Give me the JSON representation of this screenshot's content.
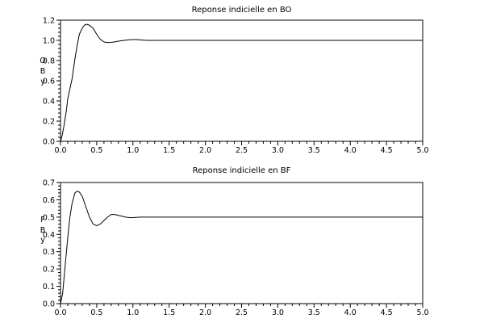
{
  "chart_data": [
    {
      "type": "line",
      "title": "Reponse indicielle en BO",
      "ylabel_chars": [
        "O",
        "B",
        "y"
      ],
      "xlim": [
        0,
        5
      ],
      "ylim": [
        0,
        1.2
      ],
      "x_ticks": [
        0.0,
        0.5,
        1.0,
        1.5,
        2.0,
        2.5,
        3.0,
        3.5,
        4.0,
        4.5,
        5.0
      ],
      "x_tick_labels": [
        "0.0",
        "0.5",
        "1.0",
        "1.5",
        "2.0",
        "2.5",
        "3.0",
        "3.5",
        "4.0",
        "4.5",
        "5.0"
      ],
      "y_ticks": [
        0.0,
        0.2,
        0.4,
        0.6,
        0.8,
        1.0,
        1.2
      ],
      "y_tick_labels": [
        "0.0",
        "0.2",
        "0.4",
        "0.6",
        "0.8",
        "1.0",
        "1.2"
      ],
      "grid": false,
      "series": [
        {
          "x": [
            0,
            0.02,
            0.05,
            0.08,
            0.1,
            0.13,
            0.16,
            0.2,
            0.23,
            0.26,
            0.3,
            0.33,
            0.36,
            0.4,
            0.45,
            0.5,
            0.55,
            0.6,
            0.65,
            0.7,
            0.75,
            0.8,
            0.85,
            0.9,
            0.95,
            1.0,
            1.05,
            1.1,
            1.15,
            1.2,
            1.3,
            1.5,
            2.0,
            3.0,
            4.0,
            5.0
          ],
          "y": [
            0,
            0.05,
            0.16,
            0.3,
            0.42,
            0.52,
            0.62,
            0.82,
            0.95,
            1.06,
            1.12,
            1.15,
            1.16,
            1.15,
            1.12,
            1.06,
            1.01,
            0.985,
            0.978,
            0.98,
            0.985,
            0.992,
            0.998,
            1.002,
            1.006,
            1.008,
            1.008,
            1.005,
            1.002,
            1.0,
            1.0,
            1.0,
            1.0,
            1.0,
            1.0,
            1.0
          ]
        }
      ]
    },
    {
      "type": "line",
      "title": "Reponse indicielle en BF",
      "ylabel_chars": [
        "F",
        "B",
        "y"
      ],
      "xlim": [
        0,
        5
      ],
      "ylim": [
        0,
        0.7
      ],
      "x_ticks": [
        0.0,
        0.5,
        1.0,
        1.5,
        2.0,
        2.5,
        3.0,
        3.5,
        4.0,
        4.5,
        5.0
      ],
      "x_tick_labels": [
        "0.0",
        "0.5",
        "1.0",
        "1.5",
        "2.0",
        "2.5",
        "3.0",
        "3.5",
        "4.0",
        "4.5",
        "5.0"
      ],
      "y_ticks": [
        0.0,
        0.1,
        0.2,
        0.3,
        0.4,
        0.5,
        0.6,
        0.7
      ],
      "y_tick_labels": [
        "0.0",
        "0.1",
        "0.2",
        "0.3",
        "0.4",
        "0.5",
        "0.6",
        "0.7"
      ],
      "grid": false,
      "series": [
        {
          "x": [
            0,
            0.03,
            0.06,
            0.1,
            0.13,
            0.16,
            0.2,
            0.23,
            0.26,
            0.3,
            0.35,
            0.4,
            0.45,
            0.5,
            0.55,
            0.6,
            0.65,
            0.7,
            0.75,
            0.8,
            0.85,
            0.9,
            0.95,
            1.0,
            1.1,
            1.2,
            1.5,
            2.0,
            3.0,
            4.0,
            5.0
          ],
          "y": [
            0,
            0.06,
            0.2,
            0.38,
            0.5,
            0.58,
            0.64,
            0.65,
            0.645,
            0.62,
            0.56,
            0.5,
            0.46,
            0.45,
            0.46,
            0.48,
            0.5,
            0.515,
            0.515,
            0.51,
            0.505,
            0.5,
            0.497,
            0.497,
            0.5,
            0.5,
            0.5,
            0.5,
            0.5,
            0.5,
            0.5
          ]
        }
      ]
    }
  ]
}
